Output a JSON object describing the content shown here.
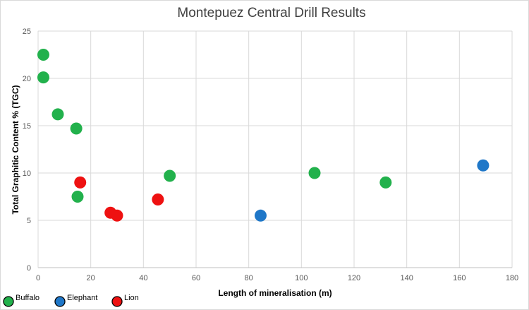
{
  "chart_data": {
    "type": "scatter",
    "title": "Montepuez Central Drill Results",
    "xlabel": "Length of mineralisation (m)",
    "ylabel": "Total Graphitic Content % (TGC)",
    "xlim": [
      0,
      180
    ],
    "ylim": [
      0,
      25
    ],
    "x_ticks": [
      0,
      20,
      40,
      60,
      80,
      100,
      120,
      140,
      160,
      180
    ],
    "y_ticks": [
      0,
      5,
      10,
      15,
      20,
      25
    ],
    "grid": "major gridlines on",
    "legend_position": "bottom-left",
    "series": [
      {
        "name": "Buffalo",
        "color": "#22b14c",
        "points": [
          {
            "x": 2,
            "y": 22.5
          },
          {
            "x": 2,
            "y": 20.1
          },
          {
            "x": 7.5,
            "y": 16.2
          },
          {
            "x": 14.5,
            "y": 14.7
          },
          {
            "x": 15,
            "y": 7.5
          },
          {
            "x": 50,
            "y": 9.7
          },
          {
            "x": 105,
            "y": 10.0
          },
          {
            "x": 132,
            "y": 9.0
          }
        ]
      },
      {
        "name": "Elephant",
        "color": "#1f77c8",
        "points": [
          {
            "x": 84.5,
            "y": 5.5
          },
          {
            "x": 169,
            "y": 10.8
          }
        ]
      },
      {
        "name": "Lion",
        "color": "#ee1111",
        "points": [
          {
            "x": 16,
            "y": 9.0
          },
          {
            "x": 27.5,
            "y": 5.8
          },
          {
            "x": 30,
            "y": 5.5
          },
          {
            "x": 45.5,
            "y": 7.2
          }
        ]
      }
    ]
  }
}
